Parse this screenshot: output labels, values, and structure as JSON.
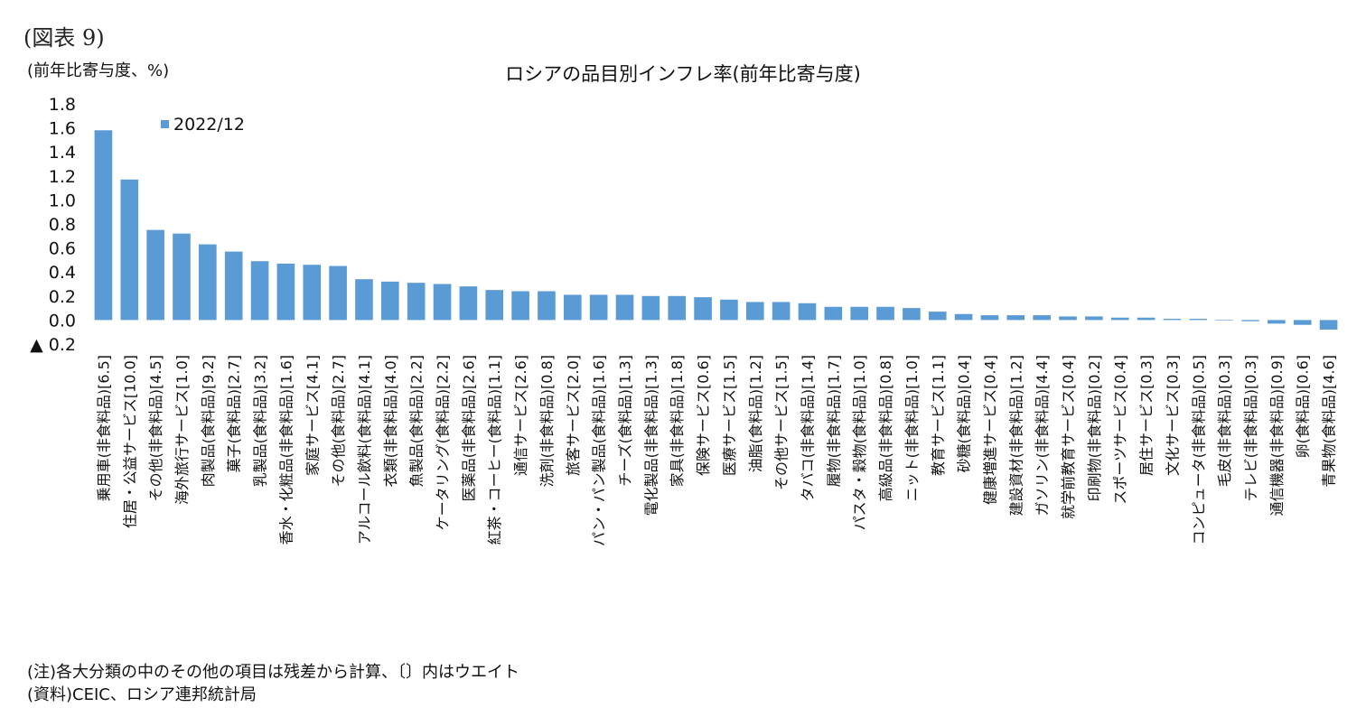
{
  "figure_label": "(図表 9)",
  "unit_label": "(前年比寄与度、%)",
  "notes": [
    "(注)各大分類の中のその他の項目は残差から計算、〔〕内はウエイト",
    "(資料)CEIC、ロシア連邦統計局"
  ],
  "chart_data": {
    "type": "bar",
    "title": "ロシアの品目別インフレ率(前年比寄与度)",
    "xlabel": "",
    "ylabel": "",
    "ylim": [
      -0.2,
      1.8
    ],
    "yticks": [
      1.8,
      1.6,
      1.4,
      1.2,
      1.0,
      0.8,
      0.6,
      0.4,
      0.2,
      0.0,
      -0.2
    ],
    "ytick_labels": [
      "1.8",
      "1.6",
      "1.4",
      "1.2",
      "1.0",
      "0.8",
      "0.6",
      "0.4",
      "0.2",
      "0.0",
      "▲ 0.2"
    ],
    "grid": false,
    "legend": "top-left",
    "color": "#5B9BD5",
    "categories": [
      "乗用車(非食料品)[6.5]",
      "住居・公益サービス[10.0]",
      "その他(非食料品)[4.5]",
      "海外旅行サービス[1.0]",
      "肉製品(食料品)[9.2]",
      "菓子(食料品)[2.7]",
      "乳製品(食料品)[3.2]",
      "香水・化粧品(非食料品)[1.6]",
      "家庭サービス[4.1]",
      "その他(食料品)[2.7]",
      "アルコール飲料(食料品)[4.1]",
      "衣類(非食料品)[4.0]",
      "魚製品(食料品)[2.2]",
      "ケータリング(食料品)[2.2]",
      "医薬品(非食料品)[2.6]",
      "紅茶・コーヒー(食料品)[1.1]",
      "通信サービス[2.6]",
      "洗剤(非食料品)[0.8]",
      "旅客サービス[2.0]",
      "パン・パン製品(食料品)[1.6]",
      "チーズ(食料品)[1.3]",
      "電化製品(非食料品)[1.3]",
      "家具(非食料品)[1.8]",
      "保険サービス[0.6]",
      "医療サービス[1.5]",
      "油脂(食料品)[1.2]",
      "その他サービス[1.5]",
      "タバコ(非食料品)[1.4]",
      "履物(非食料品)[1.7]",
      "パスタ・穀物(食料品)[1.0]",
      "高級品(非食料品)[0.8]",
      "ニット(非食料品)[1.0]",
      "教育サービス[1.1]",
      "砂糖(食料品)[0.4]",
      "健康増進サービス[0.4]",
      "建設資材(非食料品)[1.2]",
      "ガソリン(非食料品)[4.4]",
      "就学前教育サービス[0.4]",
      "印刷物(非食料品)[0.2]",
      "スポーツサービス[0.4]",
      "居住サービス[0.3]",
      "文化サービス[0.3]",
      "コンピュータ(非食料品)[0.5]",
      "毛皮(非食料品)[0.3]",
      "テレビ(非食料品)[0.3]",
      "通信機器(非食料品)[0.9]",
      "卵(食料品)[0.6]",
      "青果物(食料品)[4.6]"
    ],
    "series": [
      {
        "name": "2022/12",
        "values": [
          1.58,
          1.17,
          0.75,
          0.72,
          0.63,
          0.57,
          0.49,
          0.47,
          0.46,
          0.45,
          0.34,
          0.32,
          0.31,
          0.3,
          0.28,
          0.25,
          0.24,
          0.24,
          0.21,
          0.21,
          0.21,
          0.2,
          0.2,
          0.19,
          0.17,
          0.15,
          0.15,
          0.14,
          0.11,
          0.11,
          0.11,
          0.1,
          0.07,
          0.05,
          0.04,
          0.04,
          0.04,
          0.03,
          0.03,
          0.02,
          0.02,
          0.01,
          0.01,
          0.0,
          -0.01,
          -0.03,
          -0.04,
          -0.08
        ]
      }
    ]
  }
}
